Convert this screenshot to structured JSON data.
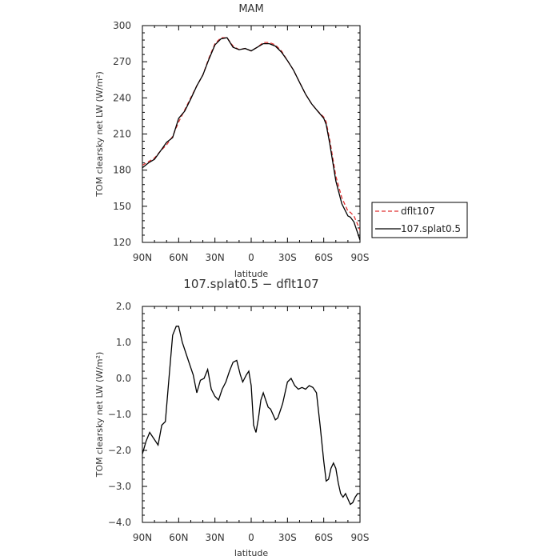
{
  "chart_data": [
    {
      "type": "line",
      "title": "MAM",
      "xlabel": "latitude",
      "ylabel": "TOM clearsky net LW (W/m²)",
      "x_ticks": [
        "90N",
        "60N",
        "30N",
        "0",
        "30S",
        "60S",
        "90S"
      ],
      "y_ticks": [
        "120",
        "150",
        "180",
        "210",
        "240",
        "270",
        "300"
      ],
      "xlim": [
        90,
        -90
      ],
      "ylim": [
        120,
        300
      ],
      "x": [
        90,
        85,
        80,
        75,
        70,
        65,
        60,
        55,
        50,
        45,
        40,
        35,
        30,
        25,
        20,
        15,
        10,
        5,
        0,
        -5,
        -10,
        -15,
        -20,
        -25,
        -30,
        -35,
        -40,
        -45,
        -50,
        -55,
        -60,
        -62,
        -65,
        -70,
        -75,
        -80,
        -82,
        -85,
        -88,
        -90
      ],
      "series": [
        {
          "name": "dflt107",
          "color": "#e03030",
          "dash": "dashed",
          "values": [
            184,
            187,
            190,
            196,
            201,
            208,
            220,
            230,
            240,
            250,
            259,
            273,
            285,
            290,
            290,
            283,
            280,
            281,
            279,
            282,
            286,
            286,
            284,
            279,
            271,
            263,
            253,
            243,
            235,
            229,
            224,
            220,
            205,
            175,
            157,
            146,
            145,
            142,
            135,
            130
          ]
        },
        {
          "name": "107.splat0.5",
          "color": "#000000",
          "dash": "solid",
          "values": [
            182,
            186,
            189,
            196,
            203,
            207,
            223,
            229,
            239,
            250,
            259,
            272,
            284,
            289,
            290,
            282,
            280,
            281,
            279,
            282,
            285,
            285,
            283,
            278,
            271,
            263,
            253,
            243,
            235,
            229,
            223,
            218,
            202,
            171,
            152,
            142,
            141,
            137,
            128,
            122
          ]
        }
      ],
      "legend": "outside-right"
    },
    {
      "type": "line",
      "title": "107.splat0.5 − dflt107",
      "xlabel": "latitude",
      "ylabel": "TOM clearsky net LW (W/m²)",
      "x_ticks": [
        "90N",
        "60N",
        "30N",
        "0",
        "30S",
        "60S",
        "90S"
      ],
      "y_ticks": [
        "−4.0",
        "−3.0",
        "−2.0",
        "−1.0",
        "0.0",
        "1.0",
        "2.0"
      ],
      "xlim": [
        90,
        -90
      ],
      "ylim": [
        -4,
        2
      ],
      "x": [
        90,
        87,
        84,
        80,
        77,
        74,
        71,
        68,
        65,
        62,
        60,
        57,
        54,
        51,
        48,
        45,
        42,
        39,
        36,
        33,
        30,
        27,
        24,
        21,
        18,
        15,
        12,
        9,
        7,
        4,
        2,
        0,
        -2,
        -4,
        -6,
        -8,
        -10,
        -12,
        -14,
        -16,
        -18,
        -20,
        -22,
        -24,
        -26,
        -28,
        -30,
        -33,
        -36,
        -39,
        -42,
        -45,
        -48,
        -51,
        -54,
        -57,
        -60,
        -62,
        -64,
        -66,
        -68,
        -70,
        -72,
        -74,
        -76,
        -78,
        -80,
        -82,
        -84,
        -86,
        -88,
        -90
      ],
      "series": [
        {
          "name": "",
          "color": "#000000",
          "dash": "solid",
          "values": [
            -2.1,
            -1.75,
            -1.5,
            -1.7,
            -1.85,
            -1.3,
            -1.2,
            0.0,
            1.2,
            1.45,
            1.45,
            1.0,
            0.7,
            0.4,
            0.1,
            -0.4,
            -0.05,
            0.0,
            0.25,
            -0.3,
            -0.5,
            -0.6,
            -0.3,
            -0.1,
            0.2,
            0.45,
            0.5,
            0.1,
            -0.1,
            0.1,
            0.2,
            -0.2,
            -1.3,
            -1.5,
            -1.1,
            -0.6,
            -0.4,
            -0.6,
            -0.8,
            -0.85,
            -1.0,
            -1.15,
            -1.1,
            -0.9,
            -0.7,
            -0.4,
            -0.1,
            0.0,
            -0.2,
            -0.3,
            -0.25,
            -0.3,
            -0.2,
            -0.25,
            -0.4,
            -1.3,
            -2.3,
            -2.85,
            -2.8,
            -2.5,
            -2.35,
            -2.5,
            -2.9,
            -3.2,
            -3.3,
            -3.2,
            -3.35,
            -3.5,
            -3.45,
            -3.3,
            -3.2,
            -3.2
          ]
        }
      ]
    }
  ]
}
